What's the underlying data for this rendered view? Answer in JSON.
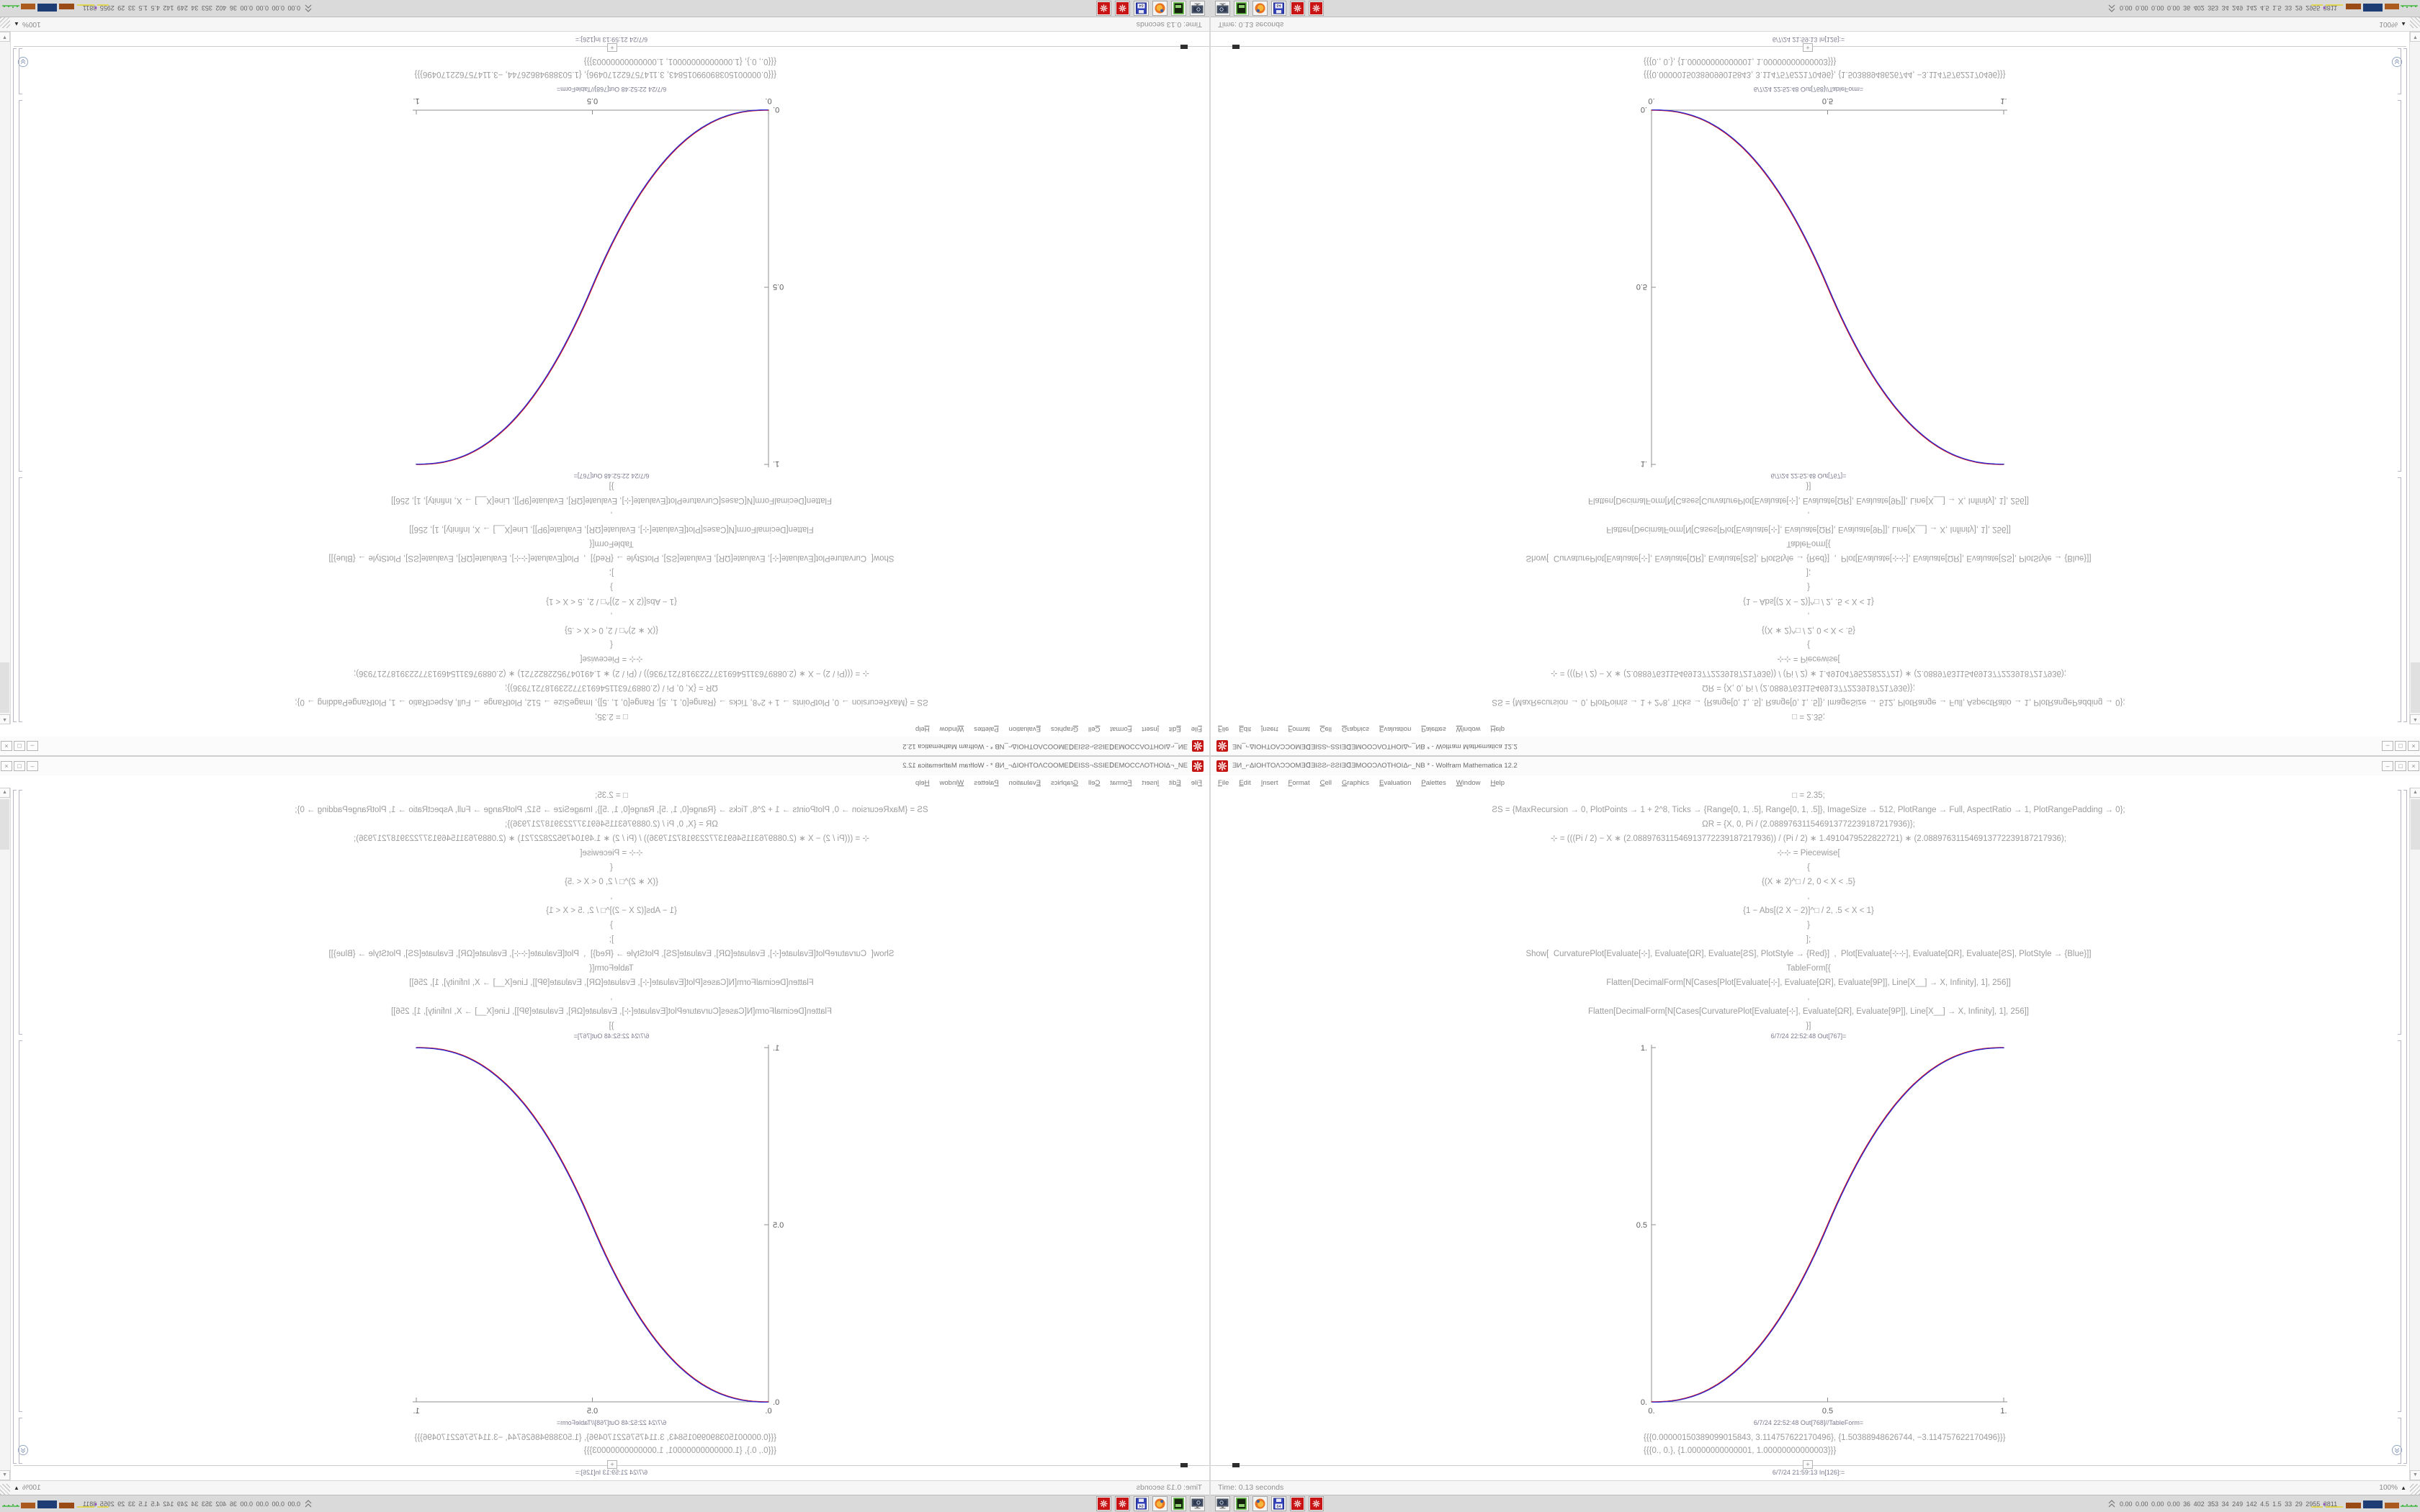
{
  "window": {
    "title": "ƎИ_⌐ΔΙΟΗΤΟΛƆƆΟΜƎᗡƎΙƧƧ⌐ƧƧΙƎᗡƎΜΟΟƆΛΟΤΗΟΙΔ⌐_ΝΒ * - Wolfram Mathematica 12.2",
    "icon": "mathematica-spikey-icon",
    "buttons": {
      "minimize": "–",
      "maximize": "□",
      "close": "×"
    }
  },
  "menu": {
    "items": [
      "File",
      "Edit",
      "Insert",
      "Format",
      "Cell",
      "Graphics",
      "Evaluation",
      "Palettes",
      "Window",
      "Help"
    ]
  },
  "notebook": {
    "code_lines": [
      "□ = 2.35;",
      "ƧS = {MaxRecursion → 0, PlotPoints → 1 + 2^8, Ticks → {Range[0, 1, .5], Range[0, 1, .5]}, ImageSize → 512, PlotRange → Full, AspectRatio → 1, PlotRangePadding → 0};",
      "ΩR = {X, 0, Pi / (2.088976311546913772239187217936)};",
      "⊹ = (((Pi / 2) − X ∗ (2.088976311546913772239187217936)) / (Pi / 2) ∗ 1.4910479522822721) ∗ (2.088976311546913772239187217936);",
      "⊹⊹ = Piecewise[",
      "{",
      "{(X ∗ 2)^□ / 2, 0 < X < .5}",
      ",",
      "{1 − Abs[(2 X − 2)]^□ / 2, .5 < X < 1}",
      "}",
      "];",
      "Show[  CurvaturePlot[Evaluate[⊹], Evaluate[ΩR], Evaluate[ƧS], PlotStyle → {Red}]  ,  Plot[Evaluate[⊹⊹], Evaluate[ΩR], Evaluate[ƧS], PlotStyle → {Blue}]]",
      "TableForm[{",
      "Flatten[DecimalForm[N[Cases[Plot[Evaluate[⊹], Evaluate[ΩR], Evaluate[9P]], Line[X__] → X, Infinity], 1], 256]]",
      ",",
      "Flatten[DecimalForm[N[Cases[CurvaturePlot[Evaluate[⊹], Evaluate[ΩR], Evaluate[9P]], Line[X__] → X, Infinity], 1], 256]]",
      "}]"
    ],
    "out1_label": "6/7/24 22:52:48 Out[767]=",
    "out2_label": "6/7/24 22:52:48 Out[768]//TableForm=",
    "table_rows": [
      "{{{0.00000150389099015843, 3.114757622170496}, {1.50388948626744, −3.114757622170496}}}",
      "{{{0., 0.}, {1.00000000000001, 1.00000000000003}}}"
    ],
    "insert_plus": "+",
    "in_label": "6/7/24 21:59:13 In[126]:="
  },
  "chart_data": {
    "type": "line",
    "title": "",
    "xlabel": "",
    "ylabel": "",
    "xlim": [
      0,
      1
    ],
    "ylim": [
      0,
      1
    ],
    "grid": false,
    "legend": "none",
    "exponent": 2.35,
    "x": [
      0,
      0.1,
      0.2,
      0.3,
      0.4,
      0.5,
      0.6,
      0.7,
      0.8,
      0.9,
      1.0
    ],
    "series": [
      {
        "name": "CurvaturePlot[⊹] (Red)",
        "color": "#e01212",
        "values": [
          0,
          0.011,
          0.058,
          0.151,
          0.296,
          0.5,
          0.704,
          0.849,
          0.942,
          0.989,
          1
        ]
      },
      {
        "name": "Plot[⊹⊹] (Blue)",
        "color": "#2b2bd4",
        "values": [
          0,
          0.011,
          0.058,
          0.151,
          0.296,
          0.5,
          0.704,
          0.849,
          0.942,
          0.989,
          1
        ]
      }
    ],
    "xticks": [
      [
        0,
        "0."
      ],
      [
        0.5,
        "0.5"
      ],
      [
        1,
        "1."
      ]
    ],
    "yticks": [
      [
        0,
        "0."
      ],
      [
        0.5,
        "0.5"
      ],
      [
        1,
        "1."
      ]
    ],
    "axes_color": "#8f8f8f",
    "tick_label_color": "#5e5e5e"
  },
  "status": {
    "time": "Time: 0.13 seconds",
    "magnification": "100%"
  },
  "taskbar": {
    "icons": [
      {
        "name": "screenshot-tool-icon"
      },
      {
        "name": "package-drive-icon"
      },
      {
        "name": "firefox-icon"
      },
      {
        "name": "floppy-64-icon",
        "label": "64"
      },
      {
        "name": "mathematica-icon"
      },
      {
        "name": "mathematica-icon-2"
      }
    ],
    "monitor_text": "0.00 0.00 0.00 0.00  36  402  353  34  249  142  4.5  1.5  33  29  2955 3811",
    "spark_colors": {
      "yellow": "#e3d300",
      "purple": "#8a2fbf",
      "brown": "#9a4a14",
      "navy": "#1e3d74",
      "orange": "#aa5a1e",
      "green": "#2db32d"
    }
  }
}
